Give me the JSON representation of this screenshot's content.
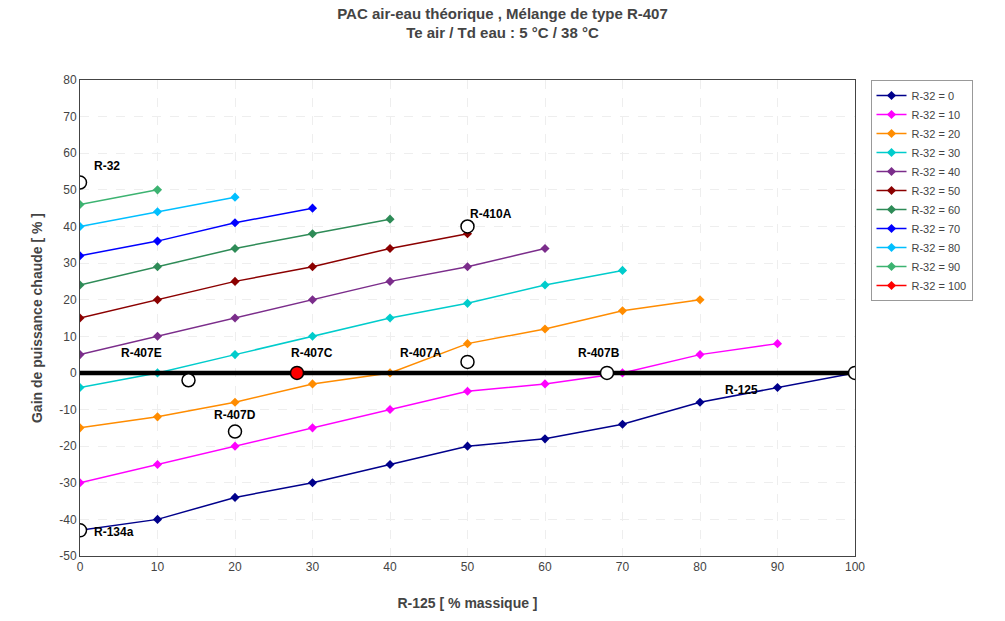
{
  "chart_data": {
    "type": "line",
    "title": "PAC air-eau théorique , Mélange de type R-407",
    "subtitle": "Te air / Td eau : 5 °C / 38 °C",
    "xlabel": "R-125 [ % massique ]",
    "ylabel": "Gain de puissance chaude [ % ]",
    "xlim": [
      0,
      100
    ],
    "ylim": [
      -50,
      80
    ],
    "xticks": [
      0,
      10,
      20,
      30,
      40,
      50,
      60,
      70,
      80,
      90,
      100
    ],
    "yticks": [
      -50,
      -40,
      -30,
      -20,
      -10,
      0,
      10,
      20,
      30,
      40,
      50,
      60,
      70,
      80
    ],
    "grid": true,
    "legend": "upper right",
    "marker": "diamond",
    "series": [
      {
        "name": "R-32 = 0",
        "color": "#00008B",
        "x": [
          0,
          10,
          20,
          30,
          40,
          50,
          60,
          70,
          80,
          90,
          100
        ],
        "values": [
          -43,
          -40,
          -34,
          -30,
          -25,
          -20,
          -18,
          -14,
          -8,
          -4,
          0
        ]
      },
      {
        "name": "R-32 = 10",
        "color": "#FF00FF",
        "x": [
          0,
          10,
          20,
          30,
          40,
          50,
          60,
          70,
          80,
          90
        ],
        "values": [
          -30,
          -25,
          -20,
          -15,
          -10,
          -5,
          -3,
          0,
          5,
          8
        ]
      },
      {
        "name": "R-32 = 20",
        "color": "#FF8C00",
        "x": [
          0,
          10,
          20,
          30,
          40,
          50,
          60,
          70,
          80
        ],
        "values": [
          -15,
          -12,
          -8,
          -3,
          0,
          8,
          12,
          17,
          20
        ]
      },
      {
        "name": "R-32 = 30",
        "color": "#00CCCC",
        "x": [
          0,
          10,
          20,
          30,
          40,
          50,
          60,
          70
        ],
        "values": [
          -4,
          0,
          5,
          10,
          15,
          19,
          24,
          28
        ]
      },
      {
        "name": "R-32 = 40",
        "color": "#7B2D8B",
        "x": [
          0,
          10,
          20,
          30,
          40,
          50,
          60
        ],
        "values": [
          5,
          10,
          15,
          20,
          25,
          29,
          34
        ]
      },
      {
        "name": "R-32 = 50",
        "color": "#8B0000",
        "x": [
          0,
          10,
          20,
          30,
          40,
          50
        ],
        "values": [
          15,
          20,
          25,
          29,
          34,
          38
        ]
      },
      {
        "name": "R-32 = 60",
        "color": "#2E8B57",
        "x": [
          0,
          10,
          20,
          30,
          40
        ],
        "values": [
          24,
          29,
          34,
          38,
          42
        ]
      },
      {
        "name": "R-32 = 70",
        "color": "#0000FF",
        "x": [
          0,
          10,
          20,
          30
        ],
        "values": [
          32,
          36,
          41,
          45
        ]
      },
      {
        "name": "R-32 = 80",
        "color": "#00BFFF",
        "x": [
          0,
          10,
          20
        ],
        "values": [
          40,
          44,
          48
        ]
      },
      {
        "name": "R-32 = 90",
        "color": "#3CB371",
        "x": [
          0,
          10
        ],
        "values": [
          46,
          50
        ]
      },
      {
        "name": "R-32 = 100",
        "color": "#FF0000",
        "x": [
          0
        ],
        "values": [
          52
        ]
      }
    ],
    "reference_line_y": 0,
    "reference_line_color": "black",
    "special_points": [
      {
        "x": 0,
        "y": 52,
        "color": "white",
        "edge_color": "black"
      },
      {
        "x": 0,
        "y": -43,
        "color": "white",
        "edge_color": "black"
      },
      {
        "x": 20,
        "y": -16,
        "color": "white",
        "edge_color": "black"
      },
      {
        "x": 28,
        "y": 0,
        "color": "red",
        "edge_color": "black"
      },
      {
        "x": 50,
        "y": 3,
        "color": "white",
        "edge_color": "black"
      },
      {
        "x": 14,
        "y": -2,
        "color": "white",
        "edge_color": "black"
      },
      {
        "x": 68,
        "y": 0,
        "color": "white",
        "edge_color": "black"
      },
      {
        "x": 50,
        "y": 40,
        "color": "white",
        "edge_color": "black"
      },
      {
        "x": 100,
        "y": 0,
        "color": "white",
        "edge_color": "black"
      }
    ],
    "annotations": [
      {
        "text": "R-32",
        "x": 1.5,
        "y": 54
      },
      {
        "text": "R-134a",
        "x": 1.5,
        "y": -46
      },
      {
        "text": "R-407E",
        "x": 5,
        "y": 3
      },
      {
        "text": "R-407C",
        "x": 27,
        "y": 3
      },
      {
        "text": "R-407A",
        "x": 41,
        "y": 3
      },
      {
        "text": "R-407B",
        "x": 64,
        "y": 3
      },
      {
        "text": "R-407D",
        "x": 17,
        "y": -14
      },
      {
        "text": "R-410A",
        "x": 50,
        "y": 41
      },
      {
        "text": "R-125",
        "x": 83,
        "y": -7
      }
    ]
  }
}
